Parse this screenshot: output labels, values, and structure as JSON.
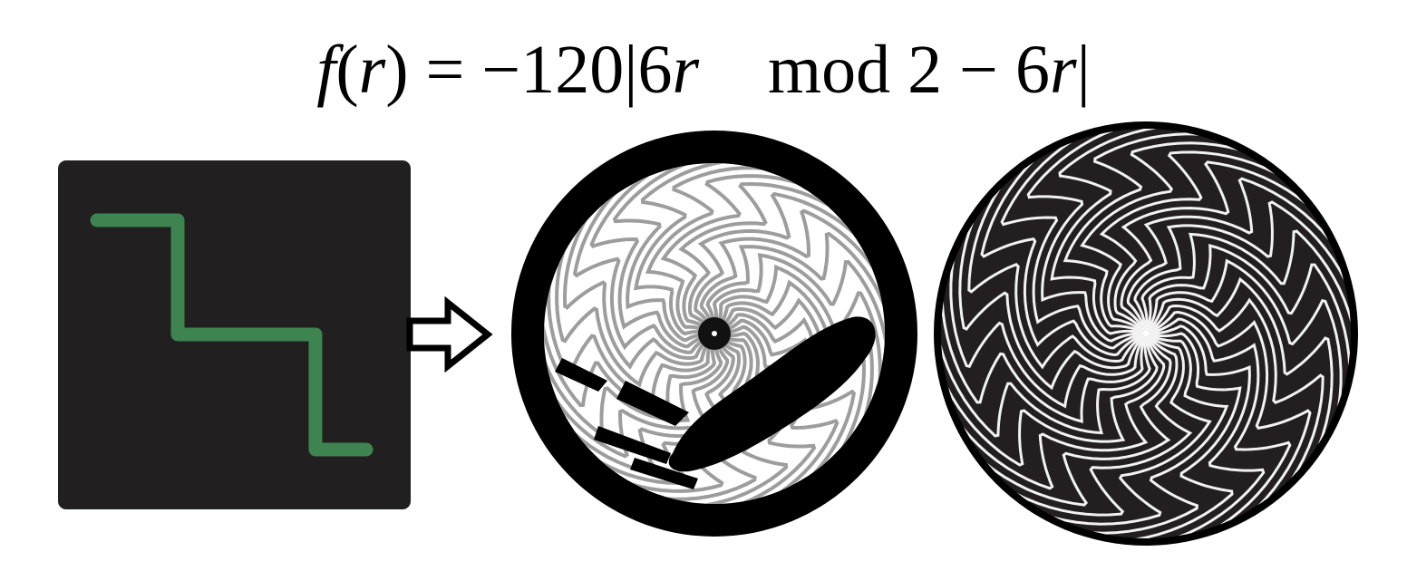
{
  "formula": {
    "f": "f",
    "open": "(",
    "r1": "r",
    "close_eq": ") = −120|6",
    "r2": "r",
    "mod": "    mod 2 − 6",
    "r3": "r",
    "end": "|"
  },
  "panel_color": "#211f20",
  "stair_color": "#3d8450",
  "colors": {
    "left_disc_bg": "#ffffff",
    "left_disc_ring": "#000000",
    "left_disc_stroke": "#8c8c8c",
    "right_disc_bg": "#231f20",
    "right_disc_stroke": "#f2f2f2"
  }
}
